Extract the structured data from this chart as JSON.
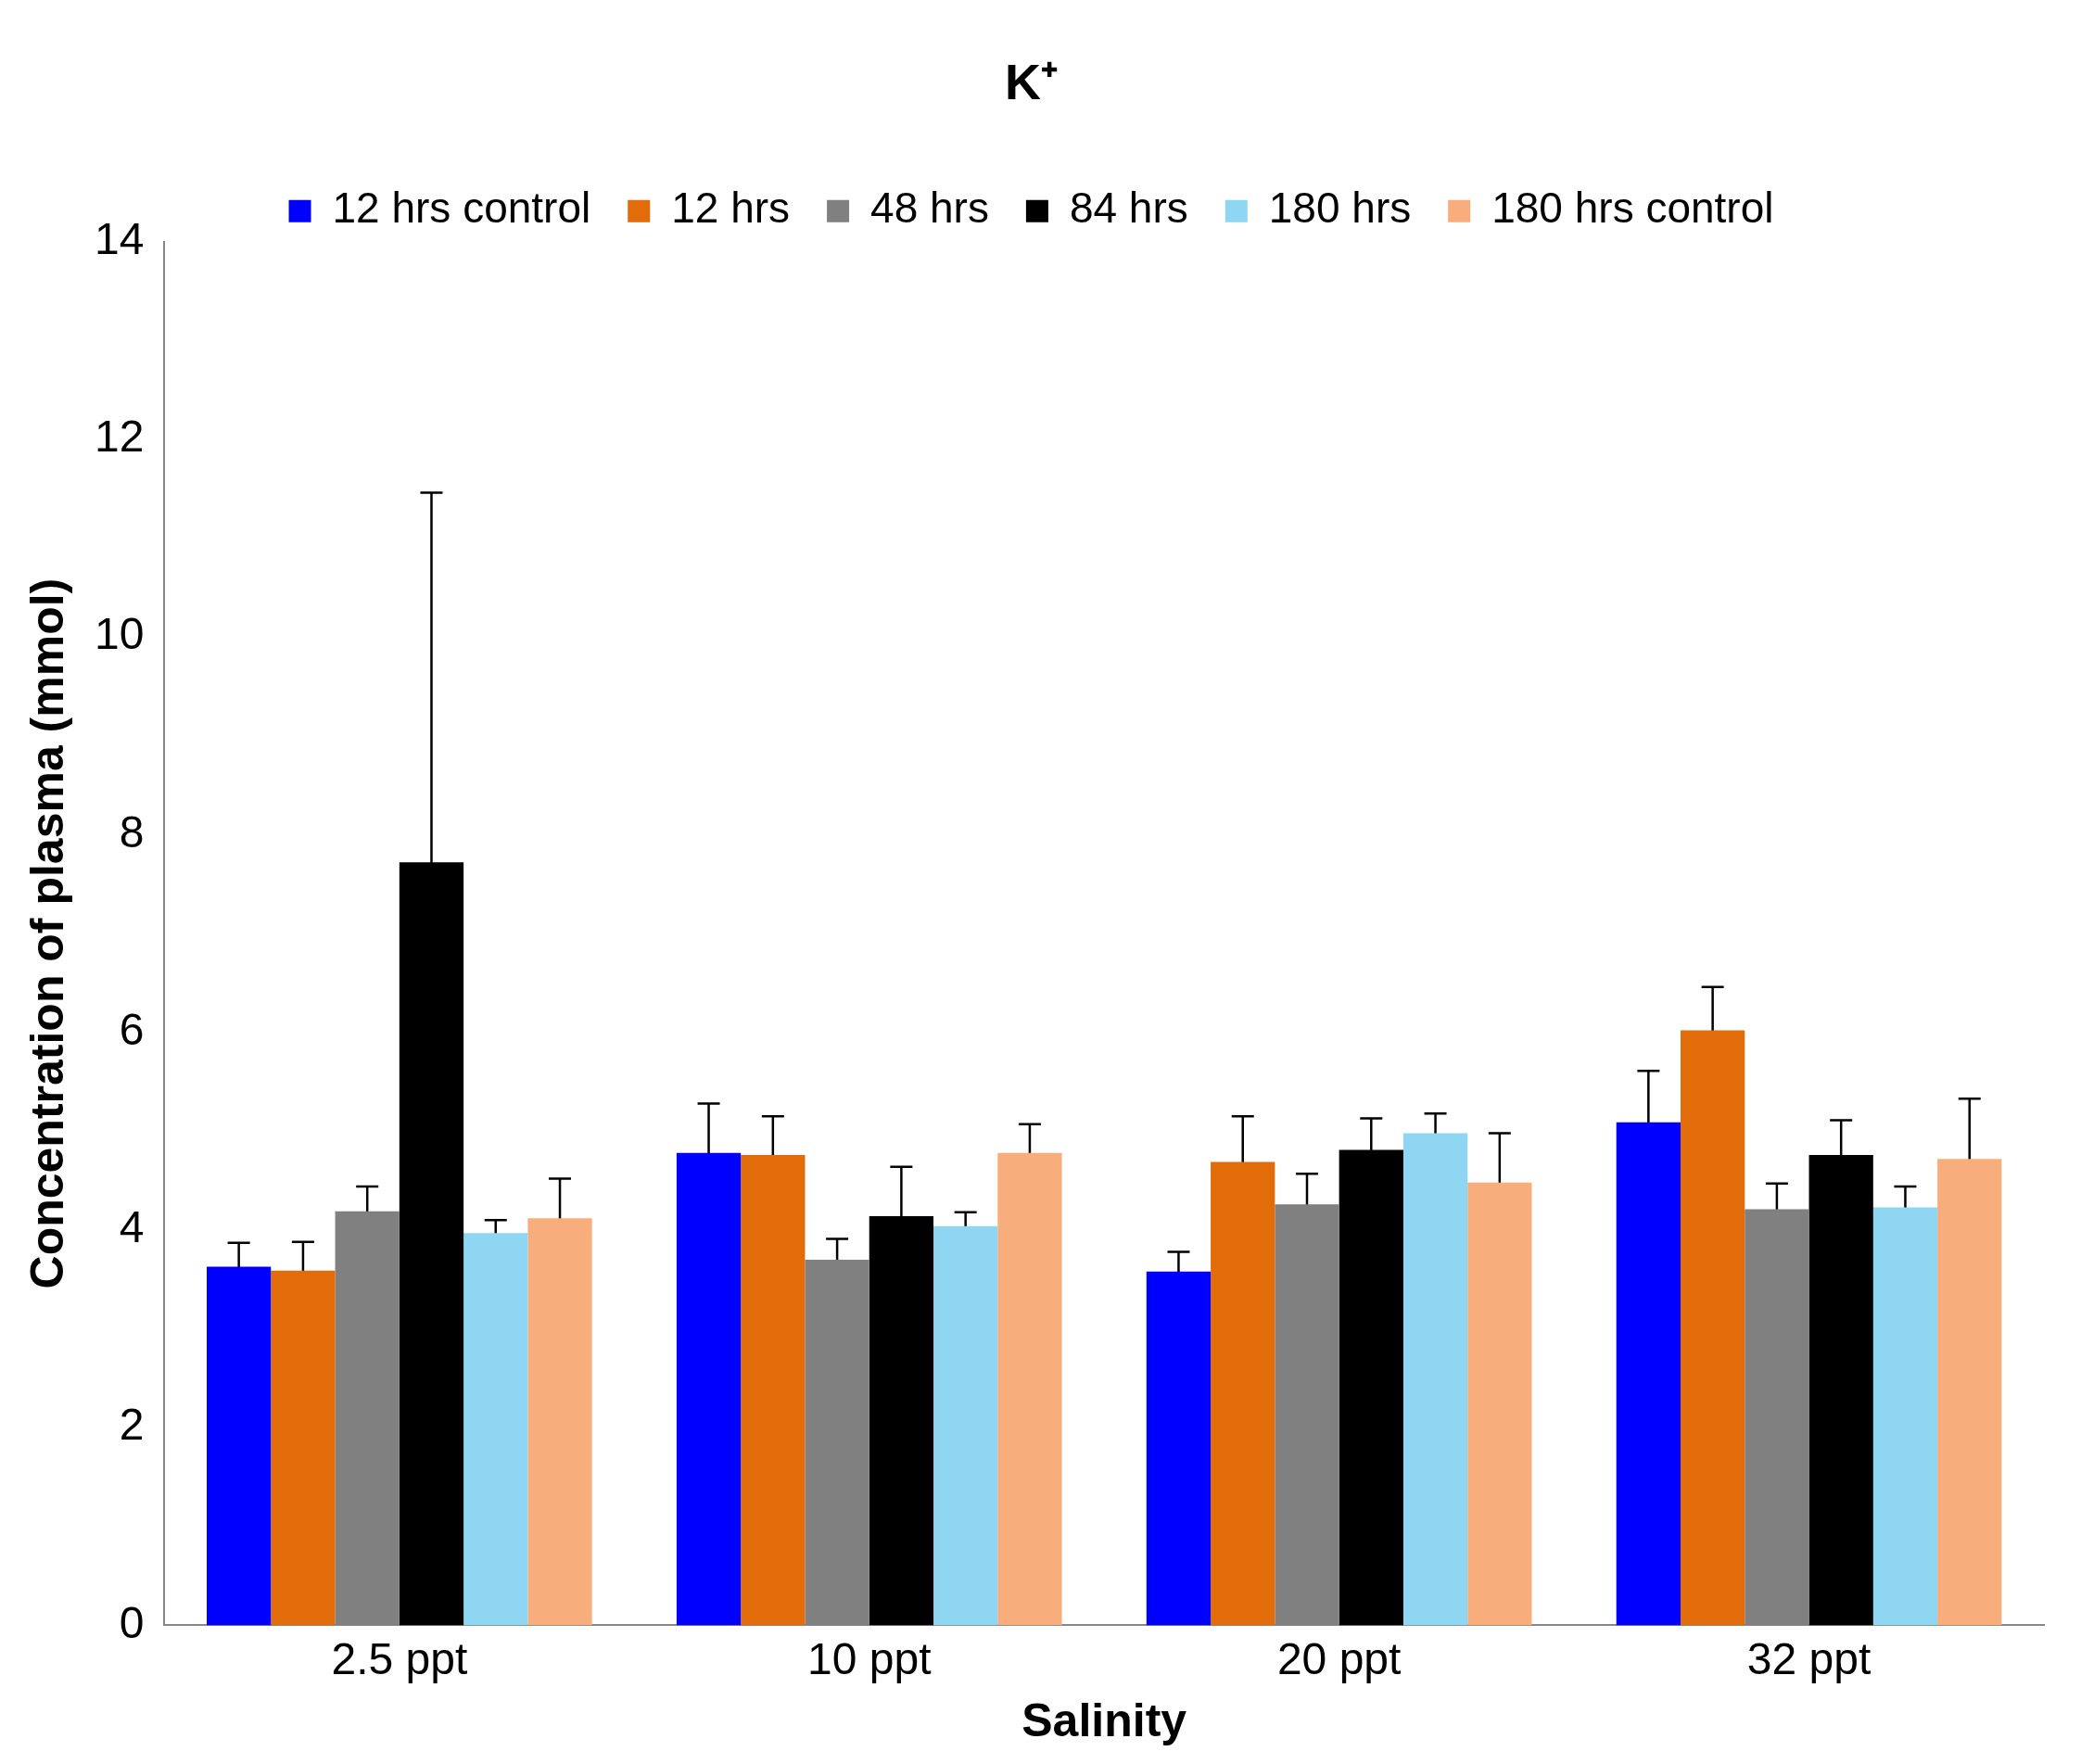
{
  "chart_data": {
    "type": "bar",
    "title": "K⁺",
    "xlabel": "Salinity",
    "ylabel": "Concentration of plasma (mmol)",
    "categories": [
      "2.5 ppt",
      "10 ppt",
      "20 ppt",
      "32 ppt"
    ],
    "series": [
      {
        "name": "12 hrs control",
        "color": "#0000ff",
        "values": [
          3.63,
          4.78,
          3.58,
          5.09
        ],
        "errors": [
          0.24,
          0.5,
          0.2,
          0.52
        ]
      },
      {
        "name": "12 hrs",
        "color": "#e36c0a",
        "values": [
          3.59,
          4.76,
          4.69,
          6.02
        ],
        "errors": [
          0.29,
          0.39,
          0.46,
          0.44
        ]
      },
      {
        "name": "48 hrs",
        "color": "#808080",
        "values": [
          4.19,
          3.7,
          4.26,
          4.21
        ],
        "errors": [
          0.25,
          0.21,
          0.31,
          0.26
        ]
      },
      {
        "name": "84 hrs",
        "color": "#000000",
        "values": [
          7.72,
          4.14,
          4.81,
          4.76
        ],
        "errors": [
          3.74,
          0.5,
          0.32,
          0.35
        ]
      },
      {
        "name": "180 hrs",
        "color": "#8ed6f2",
        "values": [
          3.97,
          4.04,
          4.98,
          4.23
        ],
        "errors": [
          0.13,
          0.14,
          0.2,
          0.21
        ]
      },
      {
        "name": "180 hrs control",
        "color": "#f8ad7c",
        "values": [
          4.12,
          4.78,
          4.48,
          4.72
        ],
        "errors": [
          0.4,
          0.29,
          0.5,
          0.61
        ]
      }
    ],
    "ylim": [
      0,
      14
    ],
    "yticks": [
      0,
      2,
      4,
      6,
      8,
      10,
      12,
      14
    ],
    "grid": false,
    "legend": "top"
  }
}
